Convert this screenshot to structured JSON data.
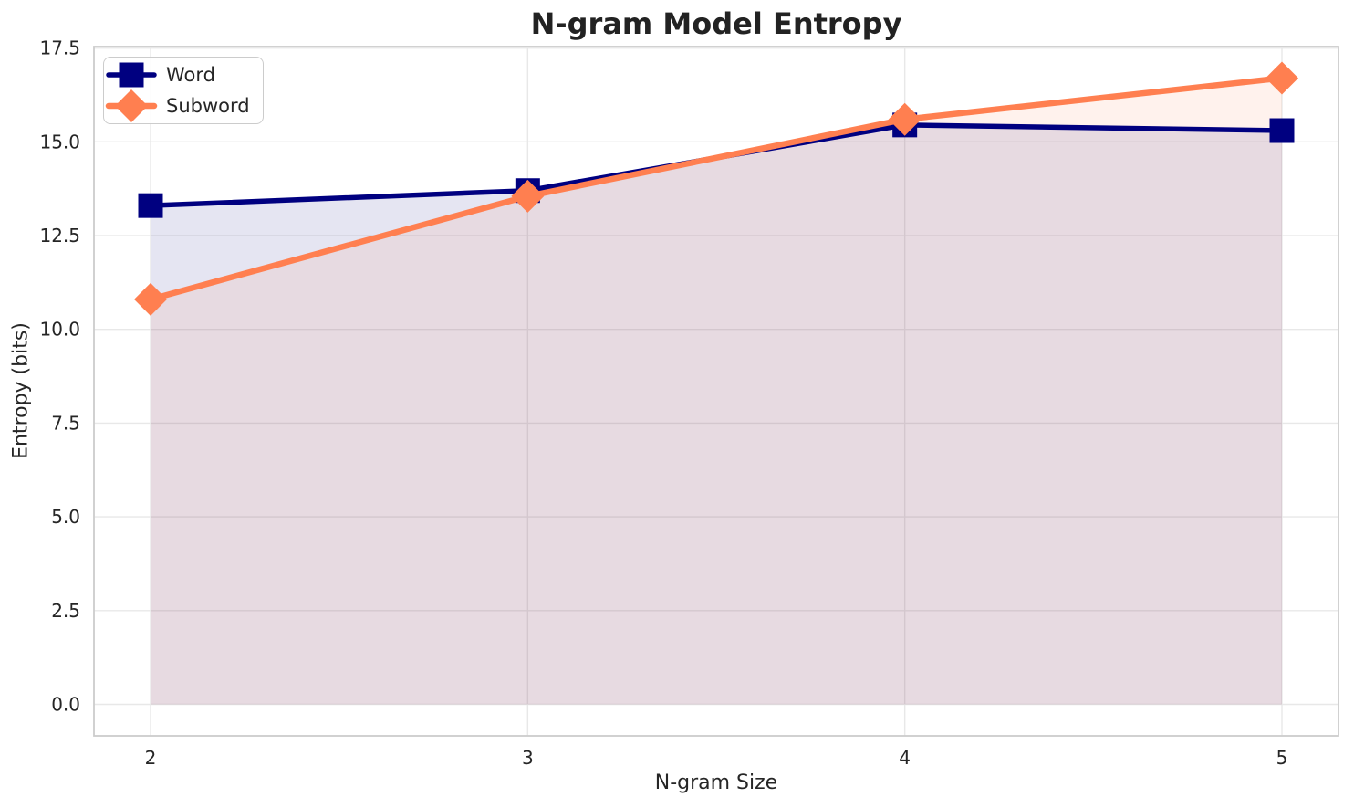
{
  "chart_data": {
    "type": "line",
    "title": "N-gram Model Entropy",
    "xlabel": "N-gram Size",
    "ylabel": "Entropy (bits)",
    "x": [
      2,
      3,
      4,
      5
    ],
    "series": [
      {
        "name": "Word",
        "color": "#000080",
        "marker": "square",
        "line_width": 5.5,
        "fill_opacity": 0.1,
        "values": [
          13.3,
          13.7,
          15.45,
          15.3
        ]
      },
      {
        "name": "Subword",
        "color": "#FF7F50",
        "marker": "diamond",
        "line_width": 6.5,
        "fill_opacity": 0.1,
        "values": [
          10.8,
          13.55,
          15.6,
          16.7
        ]
      }
    ],
    "area_fill": true,
    "area_baseline": 0,
    "xlim": [
      1.85,
      5.15
    ],
    "ylim": [
      -0.84,
      17.54
    ],
    "xticks": {
      "values": [
        2,
        3,
        4,
        5
      ],
      "labels": [
        "2",
        "3",
        "4",
        "5"
      ]
    },
    "yticks": {
      "values": [
        0,
        2.5,
        5,
        7.5,
        10,
        12.5,
        15,
        17.5
      ],
      "labels": [
        "0.0",
        "2.5",
        "5.0",
        "7.5",
        "10.0",
        "12.5",
        "15.0",
        "17.5"
      ]
    },
    "grid": true,
    "legend_position": "upper-left"
  },
  "colors": {
    "grid": "#e8e8e8",
    "spine": "#cccccc",
    "tick_text": "#262626",
    "background": "#ffffff"
  }
}
